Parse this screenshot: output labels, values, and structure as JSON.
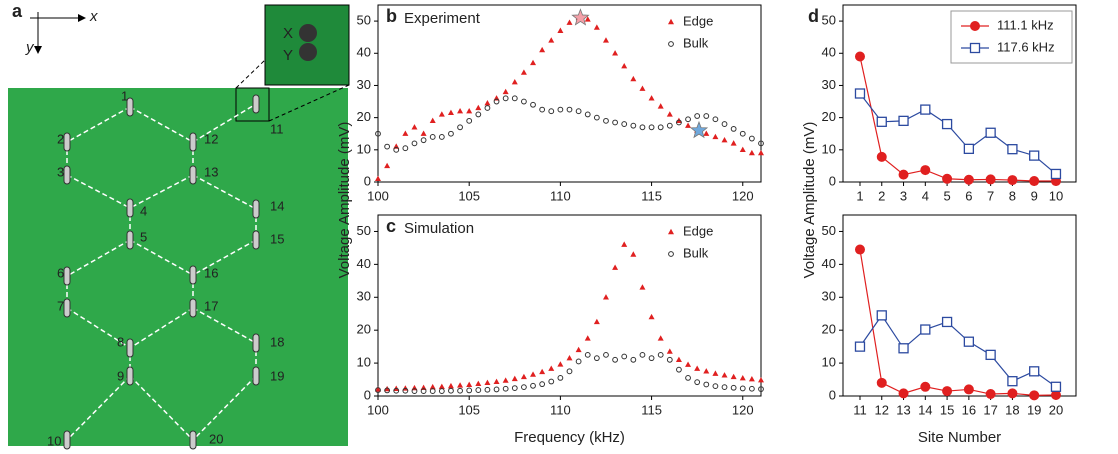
{
  "panel_a": {
    "label": "a",
    "x_axis": "x",
    "y_axis": "y",
    "inset_x": "X",
    "inset_y": "Y",
    "sites": [
      "1",
      "2",
      "3",
      "4",
      "5",
      "6",
      "7",
      "8",
      "9",
      "10",
      "11",
      "12",
      "13",
      "14",
      "15",
      "16",
      "17",
      "18",
      "19",
      "20"
    ]
  },
  "chart_data": [
    {
      "type": "scatter",
      "panel_label": "b",
      "title": "Experiment",
      "ylabel": "Voltage Amplitude (mV)",
      "xlim": [
        100,
        121
      ],
      "xticks": [
        100,
        105,
        110,
        115,
        120
      ],
      "ylim": [
        0,
        55
      ],
      "yticks": [
        0,
        10,
        20,
        30,
        40,
        50
      ],
      "x": [
        100,
        100.5,
        101,
        101.5,
        102,
        102.5,
        103,
        103.5,
        104,
        104.5,
        105,
        105.5,
        106,
        106.5,
        107,
        107.5,
        108,
        108.5,
        109,
        109.5,
        110,
        110.5,
        111,
        111.5,
        112,
        112.5,
        113,
        113.5,
        114,
        114.5,
        115,
        115.5,
        116,
        116.5,
        117,
        117.5,
        118,
        118.5,
        119,
        119.5,
        120,
        120.5,
        121
      ],
      "series": [
        {
          "name": "Edge",
          "color": "#e02020",
          "marker": "triangle",
          "values": [
            1,
            5,
            11,
            15,
            17,
            15,
            19,
            21,
            21.5,
            22,
            22,
            23,
            24.5,
            26,
            28,
            31,
            34,
            37,
            41,
            44,
            47,
            49.5,
            51,
            50.5,
            48,
            44,
            40,
            36,
            32,
            29,
            26,
            23.5,
            21,
            19,
            17.5,
            16,
            15,
            14,
            13,
            12,
            10,
            9,
            9
          ]
        },
        {
          "name": "Bulk",
          "color": "#333333",
          "marker": "circle",
          "values": [
            15,
            11,
            10,
            10.5,
            12,
            13,
            14,
            14,
            15,
            17,
            19,
            21,
            23,
            25,
            26,
            26,
            25,
            24,
            22.5,
            22,
            22.5,
            22.5,
            22,
            21,
            20,
            19,
            18.5,
            18,
            17.5,
            17,
            17,
            17,
            17.5,
            18.5,
            19.5,
            20.5,
            20.5,
            19.5,
            18,
            16.5,
            15,
            13.5,
            12
          ]
        }
      ],
      "stars": [
        {
          "x": 111.1,
          "y": 51,
          "color": "#f4a0a8"
        },
        {
          "x": 117.6,
          "y": 16,
          "color": "#6fa8dc"
        }
      ]
    },
    {
      "type": "scatter",
      "panel_label": "c",
      "title": "Simulation",
      "xlabel": "Frequency (kHz)",
      "xlim": [
        100,
        121
      ],
      "xticks": [
        100,
        105,
        110,
        115,
        120
      ],
      "ylim": [
        0,
        55
      ],
      "yticks": [
        0,
        10,
        20,
        30,
        40,
        50
      ],
      "x": [
        100,
        100.5,
        101,
        101.5,
        102,
        102.5,
        103,
        103.5,
        104,
        104.5,
        105,
        105.5,
        106,
        106.5,
        107,
        107.5,
        108,
        108.5,
        109,
        109.5,
        110,
        110.5,
        111,
        111.5,
        112,
        112.5,
        113,
        113.5,
        114,
        114.5,
        115,
        115.5,
        116,
        116.5,
        117,
        117.5,
        118,
        118.5,
        119,
        119.5,
        120,
        120.5,
        121
      ],
      "series": [
        {
          "name": "Edge",
          "color": "#e02020",
          "marker": "triangle",
          "values": [
            2,
            2.1,
            2.2,
            2.3,
            2.4,
            2.5,
            2.7,
            2.8,
            3,
            3.2,
            3.4,
            3.7,
            4,
            4.3,
            4.7,
            5.2,
            5.8,
            6.5,
            7.3,
            8.3,
            9.6,
            11.5,
            14,
            17.5,
            22.5,
            30,
            39,
            46,
            43,
            33,
            24,
            17.5,
            13.5,
            11,
            9.5,
            8.3,
            7.5,
            6.8,
            6.3,
            5.8,
            5.4,
            5.1,
            4.8
          ]
        },
        {
          "name": "Bulk",
          "color": "#333333",
          "marker": "circle",
          "values": [
            1.8,
            1.7,
            1.6,
            1.6,
            1.5,
            1.5,
            1.5,
            1.5,
            1.6,
            1.6,
            1.7,
            1.8,
            1.9,
            2,
            2.2,
            2.4,
            2.7,
            3.1,
            3.6,
            4.4,
            5.5,
            7.5,
            10.5,
            12.5,
            11.5,
            12.5,
            11,
            12,
            11,
            12.5,
            11.5,
            12.5,
            11,
            8,
            5.5,
            4.2,
            3.5,
            3,
            2.7,
            2.5,
            2.3,
            2.2,
            2.1
          ]
        }
      ]
    },
    {
      "type": "line",
      "panel_label": "d",
      "ylabel": "Voltage Amplitude (mV)",
      "categories": [
        "1",
        "2",
        "3",
        "4",
        "5",
        "6",
        "7",
        "8",
        "9",
        "10"
      ],
      "ylim": [
        0,
        55
      ],
      "yticks": [
        0,
        10,
        20,
        30,
        40,
        50
      ],
      "series": [
        {
          "name": "111.1 kHz",
          "color": "#e02020",
          "marker": "circle",
          "filled": true,
          "values": [
            39,
            7.8,
            2.3,
            3.7,
            1,
            0.7,
            0.8,
            0.6,
            0.3,
            0.3
          ]
        },
        {
          "name": "117.6 kHz",
          "color": "#2c4aa0",
          "marker": "square",
          "filled": false,
          "values": [
            27.5,
            18.7,
            19,
            22.5,
            18,
            10.3,
            15.3,
            10.2,
            8.2,
            2.5
          ]
        }
      ]
    },
    {
      "type": "line",
      "xlabel": "Site Number",
      "categories": [
        "11",
        "12",
        "13",
        "14",
        "15",
        "16",
        "17",
        "18",
        "19",
        "20"
      ],
      "ylim": [
        0,
        55
      ],
      "yticks": [
        0,
        10,
        20,
        30,
        40,
        50
      ],
      "series": [
        {
          "color": "#e02020",
          "marker": "circle",
          "filled": true,
          "values": [
            44.5,
            4,
            0.8,
            2.8,
            1.5,
            2,
            0.6,
            0.8,
            0.2,
            0.3
          ]
        },
        {
          "color": "#2c4aa0",
          "marker": "square",
          "filled": false,
          "values": [
            15,
            24.5,
            14.5,
            20.2,
            22.5,
            16.5,
            12.5,
            4.5,
            7.5,
            2.8
          ]
        }
      ]
    }
  ]
}
